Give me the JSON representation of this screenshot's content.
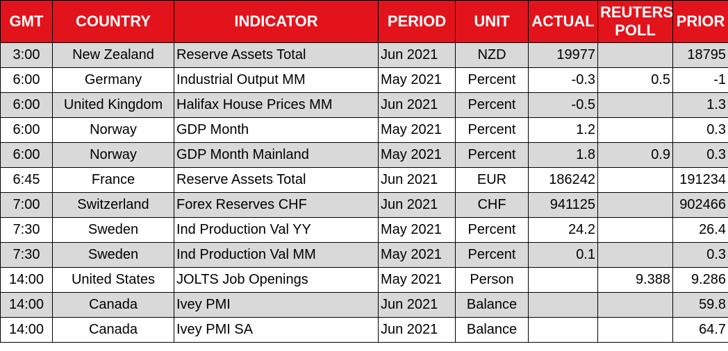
{
  "table": {
    "header": [
      "GMT",
      "COUNTRY",
      "INDICATOR",
      "PERIOD",
      "UNIT",
      "ACTUAL",
      "REUTERS POLL",
      "PRIOR"
    ],
    "rows": [
      [
        "3:00",
        "New Zealand",
        "Reserve Assets Total",
        "Jun 2021",
        "NZD",
        "19977",
        null,
        "18795"
      ],
      [
        "6:00",
        "Germany",
        "Industrial Output MM",
        "May 2021",
        "Percent",
        "-0.3",
        "0.5",
        "-1"
      ],
      [
        "6:00",
        "United Kingdom",
        "Halifax House Prices MM",
        "Jun 2021",
        "Percent",
        "-0.5",
        null,
        "1.3"
      ],
      [
        "6:00",
        "Norway",
        "GDP Month",
        "May 2021",
        "Percent",
        "1.2",
        null,
        "0.3"
      ],
      [
        "6:00",
        "Norway",
        "GDP Month Mainland",
        "May 2021",
        "Percent",
        "1.8",
        "0.9",
        "0.3"
      ],
      [
        "6:45",
        "France",
        "Reserve Assets Total",
        "Jun 2021",
        "EUR",
        "186242",
        null,
        "191234"
      ],
      [
        "7:00",
        "Switzerland",
        "Forex Reserves CHF",
        "Jun 2021",
        "CHF",
        "941125",
        null,
        "902466"
      ],
      [
        "7:30",
        "Sweden",
        "Ind Production Val YY",
        "May 2021",
        "Percent",
        "24.2",
        null,
        "26.4"
      ],
      [
        "7:30",
        "Sweden",
        "Ind Production Val MM",
        "May 2021",
        "Percent",
        "0.1",
        null,
        "0.3"
      ],
      [
        "14:00",
        "United States",
        "JOLTS Job Openings",
        "May 2021",
        "Person",
        null,
        "9.388",
        "9.286"
      ],
      [
        "14:00",
        "Canada",
        "Ivey PMI",
        "Jun 2021",
        "Balance",
        null,
        null,
        "59.8"
      ],
      [
        "14:00",
        "Canada",
        "Ivey PMI SA",
        "Jun 2021",
        "Balance",
        null,
        null,
        "64.7"
      ]
    ]
  }
}
